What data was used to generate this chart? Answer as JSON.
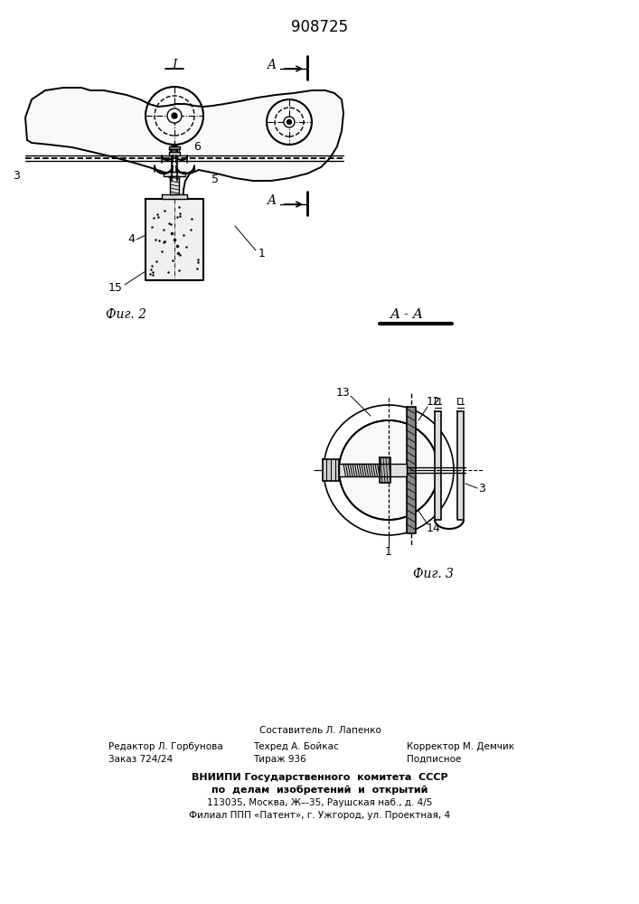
{
  "patent_number": "908725",
  "background_color": "#ffffff",
  "fig2_caption": "Фиг. 2",
  "fig3_caption": "Фиг. 3",
  "aa_label": "A - A",
  "footer_lines": [
    "Составитель Л. Лапенко",
    "Редактор Л. Горбунова",
    "Техред А. Бойкас",
    "Корректор М. Демчик",
    "Заказ 724/24",
    "Тираж 936",
    "Подписное",
    "ВНИИПИ Государственного  комитета  СССР",
    "по  делам  изобретений  и  открытий",
    "113035, Москва, Ж–-35, Раушская наб., д. 4/5",
    "Филиал ППП «Патент», г. Ужгород, ул. Проектная, 4"
  ]
}
